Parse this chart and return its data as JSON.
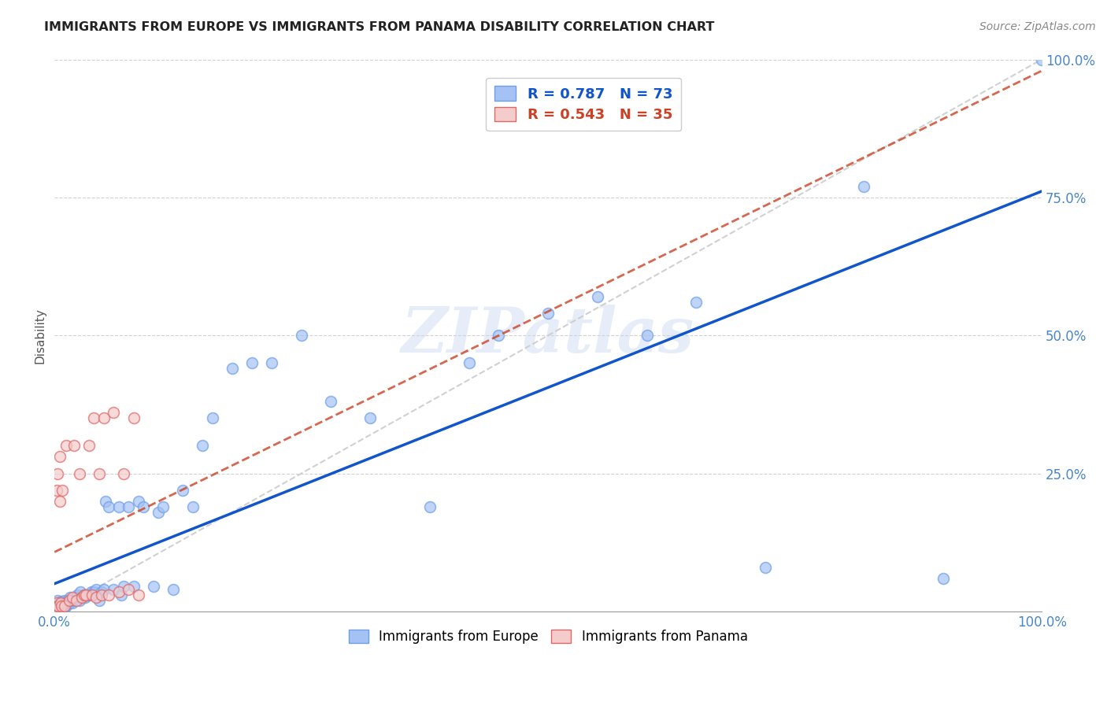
{
  "title": "IMMIGRANTS FROM EUROPE VS IMMIGRANTS FROM PANAMA DISABILITY CORRELATION CHART",
  "source": "Source: ZipAtlas.com",
  "ylabel": "Disability",
  "xlim": [
    0.0,
    1.0
  ],
  "ylim": [
    0.0,
    1.0
  ],
  "blue_color_face": "#a4c2f4",
  "blue_color_edge": "#6d9eeb",
  "pink_color_face": "#f4cccc",
  "pink_color_edge": "#e06666",
  "blue_line_color": "#1155cc",
  "pink_line_color": "#cc4125",
  "diag_color": "#cccccc",
  "watermark": "ZIPatlas",
  "legend_blue_R": "R = 0.787",
  "legend_blue_N": "N = 73",
  "legend_pink_R": "R = 0.543",
  "legend_pink_N": "N = 35",
  "europe_x": [
    0.002,
    0.003,
    0.003,
    0.004,
    0.005,
    0.005,
    0.006,
    0.007,
    0.007,
    0.008,
    0.009,
    0.01,
    0.01,
    0.011,
    0.012,
    0.013,
    0.014,
    0.015,
    0.016,
    0.016,
    0.018,
    0.018,
    0.02,
    0.022,
    0.023,
    0.025,
    0.026,
    0.028,
    0.03,
    0.031,
    0.033,
    0.035,
    0.037,
    0.04,
    0.042,
    0.045,
    0.048,
    0.05,
    0.052,
    0.055,
    0.06,
    0.065,
    0.068,
    0.07,
    0.075,
    0.08,
    0.085,
    0.09,
    0.1,
    0.105,
    0.11,
    0.12,
    0.13,
    0.14,
    0.15,
    0.16,
    0.18,
    0.2,
    0.22,
    0.25,
    0.28,
    0.32,
    0.38,
    0.42,
    0.45,
    0.5,
    0.55,
    0.6,
    0.65,
    0.72,
    0.82,
    0.9,
    1.0
  ],
  "europe_y": [
    0.01,
    0.005,
    0.02,
    0.01,
    0.008,
    0.015,
    0.01,
    0.012,
    0.018,
    0.015,
    0.005,
    0.01,
    0.02,
    0.015,
    0.01,
    0.02,
    0.015,
    0.015,
    0.02,
    0.025,
    0.015,
    0.02,
    0.02,
    0.025,
    0.03,
    0.02,
    0.035,
    0.025,
    0.03,
    0.025,
    0.03,
    0.03,
    0.035,
    0.035,
    0.04,
    0.02,
    0.035,
    0.04,
    0.2,
    0.19,
    0.04,
    0.19,
    0.03,
    0.045,
    0.19,
    0.045,
    0.2,
    0.19,
    0.045,
    0.18,
    0.19,
    0.04,
    0.22,
    0.19,
    0.3,
    0.35,
    0.44,
    0.45,
    0.45,
    0.5,
    0.38,
    0.35,
    0.19,
    0.45,
    0.5,
    0.54,
    0.57,
    0.5,
    0.56,
    0.08,
    0.77,
    0.06,
    1.0
  ],
  "panama_x": [
    0.001,
    0.002,
    0.002,
    0.003,
    0.003,
    0.004,
    0.005,
    0.005,
    0.006,
    0.007,
    0.008,
    0.01,
    0.012,
    0.015,
    0.018,
    0.02,
    0.022,
    0.025,
    0.028,
    0.03,
    0.032,
    0.035,
    0.038,
    0.04,
    0.042,
    0.045,
    0.048,
    0.05,
    0.055,
    0.06,
    0.065,
    0.07,
    0.075,
    0.08,
    0.085
  ],
  "panama_y": [
    0.005,
    0.015,
    0.22,
    0.01,
    0.25,
    0.01,
    0.2,
    0.28,
    0.015,
    0.01,
    0.22,
    0.01,
    0.3,
    0.02,
    0.025,
    0.3,
    0.02,
    0.25,
    0.025,
    0.03,
    0.03,
    0.3,
    0.03,
    0.35,
    0.025,
    0.25,
    0.03,
    0.35,
    0.03,
    0.36,
    0.035,
    0.25,
    0.04,
    0.35,
    0.03
  ]
}
